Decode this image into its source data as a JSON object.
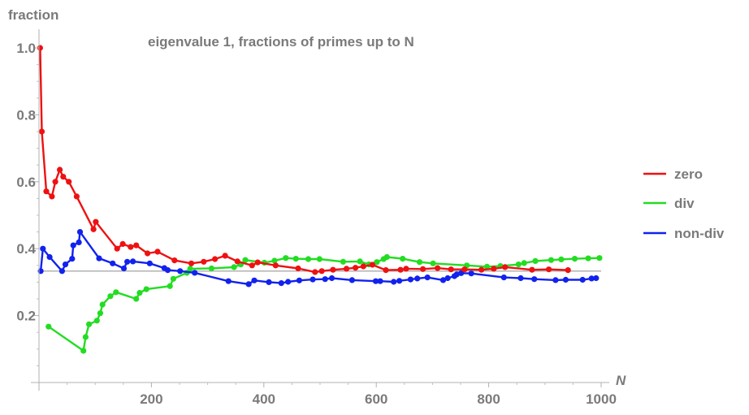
{
  "chart_data": {
    "type": "line",
    "title": "eigenvalue 1, fractions of primes up to N",
    "xlabel": "N",
    "ylabel": "fraction",
    "xlim": [
      0,
      1000
    ],
    "ylim": [
      0,
      1.05
    ],
    "x_ticks": [
      200,
      400,
      600,
      800,
      1000
    ],
    "y_ticks": [
      0.2,
      0.4,
      0.6,
      0.8,
      1.0
    ],
    "x_tick_labels": [
      "200",
      "400",
      "600",
      "800",
      "1000"
    ],
    "y_tick_labels": [
      "0.2",
      "0.4",
      "0.6",
      "0.8",
      "1.0"
    ],
    "reference_line": {
      "y": 0.333,
      "color": "#999999"
    },
    "legend_position": "right",
    "series": [
      {
        "name": "zero",
        "color": "#ee1111",
        "points": [
          [
            2,
            1.0
          ],
          [
            5,
            0.75
          ],
          [
            13,
            0.571
          ],
          [
            23,
            0.556
          ],
          [
            29,
            0.6
          ],
          [
            37,
            0.636
          ],
          [
            43,
            0.615
          ],
          [
            53,
            0.6
          ],
          [
            67,
            0.556
          ],
          [
            97,
            0.458
          ],
          [
            101,
            0.48
          ],
          [
            139,
            0.4
          ],
          [
            149,
            0.414
          ],
          [
            163,
            0.405
          ],
          [
            173,
            0.41
          ],
          [
            193,
            0.386
          ],
          [
            211,
            0.391
          ],
          [
            241,
            0.365
          ],
          [
            271,
            0.356
          ],
          [
            293,
            0.361
          ],
          [
            313,
            0.369
          ],
          [
            331,
            0.379
          ],
          [
            353,
            0.362
          ],
          [
            379,
            0.35
          ],
          [
            389,
            0.359
          ],
          [
            421,
            0.35
          ],
          [
            461,
            0.341
          ],
          [
            491,
            0.33
          ],
          [
            503,
            0.333
          ],
          [
            523,
            0.337
          ],
          [
            547,
            0.34
          ],
          [
            563,
            0.343
          ],
          [
            577,
            0.347
          ],
          [
            593,
            0.352
          ],
          [
            617,
            0.336
          ],
          [
            643,
            0.337
          ],
          [
            653,
            0.34
          ],
          [
            683,
            0.339
          ],
          [
            709,
            0.342
          ],
          [
            733,
            0.338
          ],
          [
            757,
            0.338
          ],
          [
            787,
            0.337
          ],
          [
            809,
            0.34
          ],
          [
            829,
            0.345
          ],
          [
            877,
            0.337
          ],
          [
            907,
            0.338
          ],
          [
            941,
            0.336
          ]
        ]
      },
      {
        "name": "div",
        "color": "#22dd22",
        "points": [
          [
            17,
            0.167
          ],
          [
            79,
            0.095
          ],
          [
            83,
            0.136
          ],
          [
            89,
            0.174
          ],
          [
            103,
            0.185
          ],
          [
            109,
            0.207
          ],
          [
            113,
            0.233
          ],
          [
            127,
            0.258
          ],
          [
            137,
            0.27
          ],
          [
            173,
            0.25
          ],
          [
            179,
            0.268
          ],
          [
            191,
            0.279
          ],
          [
            233,
            0.288
          ],
          [
            239,
            0.31
          ],
          [
            263,
            0.328
          ],
          [
            269,
            0.34
          ],
          [
            307,
            0.341
          ],
          [
            347,
            0.345
          ],
          [
            359,
            0.353
          ],
          [
            367,
            0.366
          ],
          [
            401,
            0.358
          ],
          [
            419,
            0.364
          ],
          [
            439,
            0.372
          ],
          [
            457,
            0.37
          ],
          [
            479,
            0.369
          ],
          [
            499,
            0.369
          ],
          [
            541,
            0.361
          ],
          [
            571,
            0.362
          ],
          [
            587,
            0.353
          ],
          [
            601,
            0.36
          ],
          [
            613,
            0.369
          ],
          [
            619,
            0.375
          ],
          [
            647,
            0.37
          ],
          [
            677,
            0.36
          ],
          [
            701,
            0.356
          ],
          [
            761,
            0.35
          ],
          [
            797,
            0.346
          ],
          [
            821,
            0.348
          ],
          [
            853,
            0.353
          ],
          [
            863,
            0.357
          ],
          [
            883,
            0.363
          ],
          [
            911,
            0.366
          ],
          [
            929,
            0.368
          ],
          [
            953,
            0.37
          ],
          [
            977,
            0.371
          ],
          [
            997,
            0.372
          ]
        ]
      },
      {
        "name": "non-div",
        "color": "#1122ee",
        "points": [
          [
            3,
            0.333
          ],
          [
            7,
            0.4
          ],
          [
            19,
            0.375
          ],
          [
            41,
            0.333
          ],
          [
            47,
            0.353
          ],
          [
            59,
            0.37
          ],
          [
            61,
            0.41
          ],
          [
            71,
            0.419
          ],
          [
            73,
            0.45
          ],
          [
            107,
            0.371
          ],
          [
            131,
            0.356
          ],
          [
            151,
            0.341
          ],
          [
            157,
            0.361
          ],
          [
            167,
            0.362
          ],
          [
            197,
            0.356
          ],
          [
            223,
            0.342
          ],
          [
            229,
            0.336
          ],
          [
            251,
            0.333
          ],
          [
            277,
            0.328
          ],
          [
            337,
            0.303
          ],
          [
            373,
            0.294
          ],
          [
            383,
            0.305
          ],
          [
            409,
            0.3
          ],
          [
            431,
            0.297
          ],
          [
            443,
            0.301
          ],
          [
            463,
            0.305
          ],
          [
            487,
            0.308
          ],
          [
            509,
            0.309
          ],
          [
            521,
            0.312
          ],
          [
            557,
            0.306
          ],
          [
            599,
            0.303
          ],
          [
            607,
            0.303
          ],
          [
            631,
            0.301
          ],
          [
            641,
            0.304
          ],
          [
            661,
            0.308
          ],
          [
            673,
            0.311
          ],
          [
            691,
            0.314
          ],
          [
            719,
            0.306
          ],
          [
            727,
            0.312
          ],
          [
            739,
            0.318
          ],
          [
            743,
            0.323
          ],
          [
            751,
            0.327
          ],
          [
            769,
            0.326
          ],
          [
            827,
            0.314
          ],
          [
            857,
            0.312
          ],
          [
            881,
            0.309
          ],
          [
            919,
            0.306
          ],
          [
            937,
            0.307
          ],
          [
            967,
            0.307
          ],
          [
            983,
            0.311
          ],
          [
            991,
            0.312
          ]
        ]
      }
    ]
  }
}
